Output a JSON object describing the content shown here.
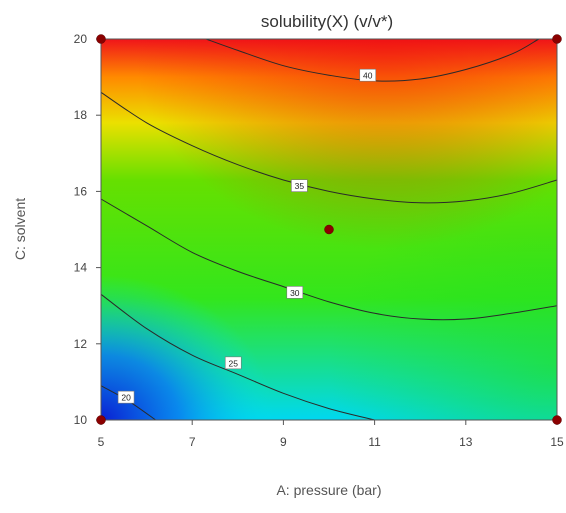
{
  "chart_data": {
    "type": "heatmap",
    "subtype": "contour",
    "title": "solubility(X) (v/v*)",
    "xlabel": "A: pressure (bar)",
    "ylabel": "C: solvent",
    "xlim": [
      5,
      15
    ],
    "ylim": [
      10,
      20
    ],
    "xticks": [
      "5",
      "7",
      "9",
      "11",
      "13",
      "15"
    ],
    "yticks": [
      "10",
      "12",
      "14",
      "16",
      "18",
      "20"
    ],
    "colormap": [
      "#0a1fd2",
      "#00e9ef",
      "#33e61c",
      "#e9e900",
      "#ff8c00",
      "#f01a1a"
    ],
    "contours": [
      {
        "level": 20,
        "label": "20",
        "points": [
          [
            5.0,
            10.9
          ],
          [
            5.6,
            10.5
          ],
          [
            6.2,
            10.0
          ]
        ],
        "label_pos": [
          5.55,
          10.6
        ]
      },
      {
        "level": 25,
        "label": "25",
        "points": [
          [
            5.0,
            13.3
          ],
          [
            6.0,
            12.4
          ],
          [
            7.0,
            11.7
          ],
          [
            8.0,
            11.2
          ],
          [
            9.0,
            10.7
          ],
          [
            10.0,
            10.3
          ],
          [
            11.0,
            10.0
          ]
        ],
        "label_pos": [
          7.9,
          11.5
        ]
      },
      {
        "level": 30,
        "label": "30",
        "points": [
          [
            5.0,
            15.8
          ],
          [
            6.0,
            15.1
          ],
          [
            7.0,
            14.4
          ],
          [
            8.0,
            13.9
          ],
          [
            9.0,
            13.5
          ],
          [
            10.0,
            13.1
          ],
          [
            11.0,
            12.8
          ],
          [
            12.0,
            12.65
          ],
          [
            13.0,
            12.65
          ],
          [
            14.0,
            12.8
          ],
          [
            15.0,
            13.0
          ]
        ],
        "label_pos": [
          9.25,
          13.35
        ]
      },
      {
        "level": 35,
        "label": "35",
        "points": [
          [
            5.0,
            18.6
          ],
          [
            6.0,
            17.8
          ],
          [
            7.0,
            17.2
          ],
          [
            8.0,
            16.7
          ],
          [
            9.0,
            16.3
          ],
          [
            10.0,
            16.0
          ],
          [
            11.0,
            15.8
          ],
          [
            12.0,
            15.7
          ],
          [
            13.0,
            15.75
          ],
          [
            14.0,
            15.95
          ],
          [
            15.0,
            16.3
          ]
        ],
        "label_pos": [
          9.35,
          16.15
        ]
      },
      {
        "level": 40,
        "label": "40",
        "points": [
          [
            7.3,
            20.0
          ],
          [
            8.0,
            19.7
          ],
          [
            9.0,
            19.3
          ],
          [
            10.0,
            19.05
          ],
          [
            11.0,
            18.9
          ],
          [
            12.0,
            18.95
          ],
          [
            13.0,
            19.2
          ],
          [
            14.0,
            19.6
          ],
          [
            14.6,
            20.0
          ]
        ],
        "label_pos": [
          10.85,
          19.05
        ]
      }
    ],
    "design_points": [
      {
        "x": 5,
        "y": 20
      },
      {
        "x": 15,
        "y": 20
      },
      {
        "x": 10,
        "y": 15
      },
      {
        "x": 5,
        "y": 10
      },
      {
        "x": 15,
        "y": 10
      }
    ]
  }
}
